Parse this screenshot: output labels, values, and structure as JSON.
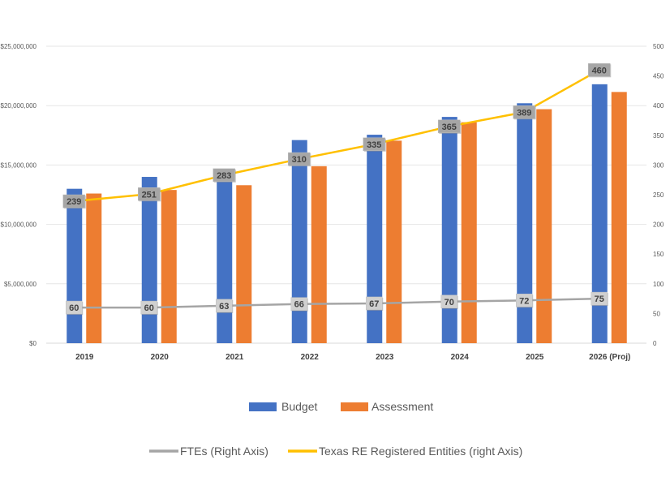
{
  "chart_data": {
    "type": "bar",
    "title": "",
    "categories": [
      "2019",
      "2020",
      "2021",
      "2022",
      "2023",
      "2024",
      "2025",
      "2026 (Proj)"
    ],
    "left_axis": {
      "ylim": [
        0,
        25000000
      ],
      "ticks": [
        0,
        5000000,
        10000000,
        15000000,
        20000000,
        25000000
      ],
      "tick_labels": [
        "$0",
        "$5,000,000",
        "$10,000,000",
        "$15,000,000",
        "$20,000,000",
        "$25,000,000"
      ]
    },
    "right_axis": {
      "ylim": [
        0,
        500
      ],
      "ticks": [
        0,
        50,
        100,
        150,
        200,
        250,
        300,
        350,
        400,
        450,
        500
      ],
      "tick_labels": [
        "0",
        "50",
        "100",
        "150",
        "200",
        "250",
        "300",
        "350",
        "400",
        "450",
        "500"
      ]
    },
    "grid": true,
    "bar_series": [
      {
        "name": "Budget",
        "color": "#4472C4",
        "axis": "left",
        "values": [
          13000000,
          14000000,
          14100000,
          17100000,
          17550000,
          19050000,
          20200000,
          21800000
        ]
      },
      {
        "name": "Assessment",
        "color": "#ED7D31",
        "axis": "left",
        "values": [
          12600000,
          12900000,
          13300000,
          14900000,
          17050000,
          18600000,
          19700000,
          21150000
        ]
      }
    ],
    "line_series": [
      {
        "name": "FTEs (Right Axis)",
        "color": "#A5A5A5",
        "axis": "right",
        "values": [
          60,
          60,
          63,
          66,
          67,
          70,
          72,
          75
        ]
      },
      {
        "name": "Texas RE Registered Entities (right Axis)",
        "color": "#FFC000",
        "axis": "right",
        "values": [
          239,
          251,
          283,
          310,
          335,
          365,
          389,
          460
        ]
      }
    ],
    "legend": {
      "placement": "bottom",
      "row1": [
        "Budget",
        "Assessment"
      ],
      "row2": [
        "FTEs (Right Axis)",
        "Texas RE Registered Entities (right Axis)"
      ]
    }
  }
}
